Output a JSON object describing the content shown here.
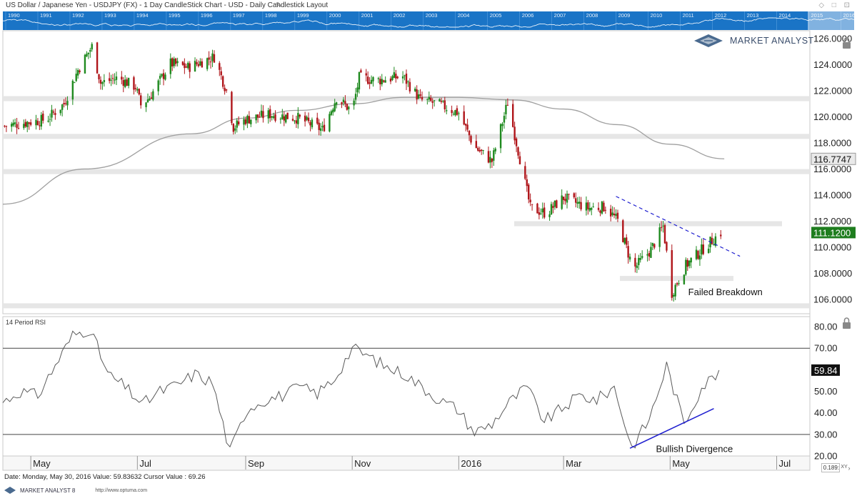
{
  "window": {
    "title": "US Dollar / Japanese Yen - USDJPY (FX) - 1 Day CandleStick Chart - USD - Daily Candlestick Layout",
    "controls": "◇ □ ⊡"
  },
  "navigator": {
    "years": [
      "1990",
      "1991",
      "1992",
      "1993",
      "1994",
      "1995",
      "1996",
      "1997",
      "1998",
      "1999",
      "2000",
      "2001",
      "2002",
      "2003",
      "2004",
      "2005",
      "2006",
      "2007",
      "2008",
      "2009",
      "2010",
      "2011",
      "2012",
      "2013",
      "2014",
      "2015",
      "2016"
    ]
  },
  "brand": {
    "name": "MARKET ANALYST"
  },
  "footer": {
    "status": "Date: Monday, May 30, 2016 Value: 59.83632 Cursor Value : 69.26",
    "brand": "MARKET ANALYST 8",
    "url": "http://www.optuma.com",
    "zoom": "0.189:",
    "xy": "XY"
  },
  "colors": {
    "up": "#1f8a1f",
    "down": "#b0151a",
    "ma": "#a0a0a0",
    "trendline": "#2020d0",
    "rsi": "#5a5a5a",
    "navigator": "#1a74c6",
    "last_price_bg": "#1e7d1e"
  },
  "chart_data": [
    {
      "type": "candlestick",
      "title": "US Dollar / Japanese Yen - USDJPY (FX) - 1 Day CandleStick Chart - USD - Daily Candlestick Layout",
      "x_tick_labels": [
        "May",
        "Jul",
        "Sep",
        "Nov",
        "2016",
        "Mar",
        "May",
        "Jul"
      ],
      "x_tick_dates": [
        "2015-05-01",
        "2015-07-01",
        "2015-09-01",
        "2015-11-01",
        "2016-01-01",
        "2016-03-01",
        "2016-05-01",
        "2016-07-01"
      ],
      "x_range": [
        "2015-04-15",
        "2016-07-20"
      ],
      "ylim": [
        105.0,
        126.5
      ],
      "y_ticks": [
        "126.0000",
        "124.0000",
        "122.0000",
        "120.0000",
        "118.0000",
        "116.0000",
        "114.0000",
        "112.0000",
        "110.0000",
        "108.0000",
        "106.0000"
      ],
      "y_tick_values": [
        126,
        124,
        122,
        120,
        118,
        116,
        114,
        112,
        110,
        108,
        106
      ],
      "legend": "none",
      "price_path": [
        [
          "2015-04-16",
          119.3
        ],
        [
          "2015-04-30",
          119.6
        ],
        [
          "2015-05-10",
          119.8
        ],
        [
          "2015-05-20",
          121.0
        ],
        [
          "2015-05-28",
          123.6
        ],
        [
          "2015-06-05",
          125.4
        ],
        [
          "2015-06-10",
          122.6
        ],
        [
          "2015-06-20",
          123.0
        ],
        [
          "2015-06-30",
          122.3
        ],
        [
          "2015-07-03",
          120.9
        ],
        [
          "2015-07-08",
          121.5
        ],
        [
          "2015-07-20",
          124.1
        ],
        [
          "2015-07-30",
          123.8
        ],
        [
          "2015-08-10",
          124.4
        ],
        [
          "2015-08-14",
          124.6
        ],
        [
          "2015-08-21",
          122.0
        ],
        [
          "2015-08-25",
          119.2
        ],
        [
          "2015-09-01",
          119.8
        ],
        [
          "2015-09-15",
          120.2
        ],
        [
          "2015-10-01",
          119.9
        ],
        [
          "2015-10-15",
          119.0
        ],
        [
          "2015-10-23",
          121.5
        ],
        [
          "2015-11-01",
          120.4
        ],
        [
          "2015-11-05",
          123.0
        ],
        [
          "2015-11-15",
          122.8
        ],
        [
          "2015-11-30",
          123.1
        ],
        [
          "2015-12-10",
          121.3
        ],
        [
          "2015-12-20",
          121.0
        ],
        [
          "2016-01-01",
          120.3
        ],
        [
          "2016-01-10",
          117.7
        ],
        [
          "2016-01-20",
          116.6
        ],
        [
          "2016-01-29",
          121.1
        ],
        [
          "2016-02-05",
          116.8
        ],
        [
          "2016-02-11",
          113.0
        ],
        [
          "2016-02-20",
          112.6
        ],
        [
          "2016-03-01",
          113.8
        ],
        [
          "2016-03-15",
          113.0
        ],
        [
          "2016-03-25",
          113.1
        ],
        [
          "2016-04-01",
          112.0
        ],
        [
          "2016-04-10",
          108.3
        ],
        [
          "2016-04-20",
          109.8
        ],
        [
          "2016-04-27",
          111.6
        ],
        [
          "2016-05-02",
          106.5
        ],
        [
          "2016-05-10",
          108.6
        ],
        [
          "2016-05-20",
          109.9
        ],
        [
          "2016-05-30",
          111.12
        ]
      ],
      "moving_average": [
        [
          "2015-04-15",
          113.3
        ],
        [
          "2015-06-01",
          116.0
        ],
        [
          "2015-08-01",
          118.7
        ],
        [
          "2015-09-01",
          119.9
        ],
        [
          "2015-10-01",
          120.5
        ],
        [
          "2015-11-01",
          121.0
        ],
        [
          "2015-12-01",
          121.5
        ],
        [
          "2016-01-01",
          121.5
        ],
        [
          "2016-02-01",
          121.3
        ],
        [
          "2016-03-01",
          120.6
        ],
        [
          "2016-04-01",
          119.4
        ],
        [
          "2016-05-01",
          117.9
        ],
        [
          "2016-06-01",
          116.78
        ]
      ],
      "support_resistance_bands": [
        121.4,
        118.5,
        115.8,
        111.8,
        107.6,
        105.5
      ],
      "trendline": {
        "from": [
          "2016-03-31",
          113.9
        ],
        "to": [
          "2016-06-10",
          109.3
        ],
        "style": "dashed"
      },
      "last_price": "111.1200",
      "last_price_value": 111.12,
      "ma_value_label": "116.7747",
      "ma_last_value": 116.7747,
      "annotations": [
        {
          "text": "Failed Breakdown",
          "x": "2016-05-04",
          "y": 106.2
        }
      ]
    },
    {
      "type": "line",
      "title": "14 Period RSI",
      "ylim": [
        20,
        84
      ],
      "y_ticks": [
        "80.00",
        "70.00",
        "60.00",
        "50.00",
        "40.00",
        "30.00",
        "20.00"
      ],
      "y_tick_values": [
        80,
        70,
        60,
        50,
        40,
        30,
        20
      ],
      "reference_lines": [
        70,
        30
      ],
      "x": [
        "2015-04-15",
        "2015-04-25",
        "2015-05-05",
        "2015-05-15",
        "2015-05-25",
        "2015-06-04",
        "2015-06-14",
        "2015-06-24",
        "2015-07-04",
        "2015-07-14",
        "2015-07-24",
        "2015-08-03",
        "2015-08-13",
        "2015-08-23",
        "2015-09-02",
        "2015-09-12",
        "2015-09-22",
        "2015-10-02",
        "2015-10-12",
        "2015-10-22",
        "2015-11-01",
        "2015-11-11",
        "2015-11-21",
        "2015-12-01",
        "2015-12-11",
        "2015-12-21",
        "2015-12-31",
        "2016-01-10",
        "2016-01-20",
        "2016-01-30",
        "2016-02-09",
        "2016-02-19",
        "2016-02-29",
        "2016-03-10",
        "2016-03-20",
        "2016-03-30",
        "2016-04-09",
        "2016-04-19",
        "2016-04-29",
        "2016-05-09",
        "2016-05-19",
        "2016-05-30"
      ],
      "values": [
        45,
        50,
        48,
        62,
        76,
        79,
        58,
        52,
        44,
        50,
        53,
        58,
        54,
        22,
        42,
        46,
        48,
        52,
        49,
        56,
        70,
        66,
        61,
        58,
        52,
        46,
        42,
        31,
        35,
        45,
        52,
        36,
        42,
        48,
        46,
        52,
        24,
        37,
        62,
        35,
        52,
        59.84
      ],
      "last_value": "59.84",
      "trendline": {
        "from": [
          "2016-04-08",
          23.6
        ],
        "to": [
          "2016-05-26",
          42.0
        ]
      },
      "annotations": [
        {
          "text": "Bullish Divergence",
          "x": "2016-04-18",
          "y": 23.5
        }
      ]
    }
  ]
}
